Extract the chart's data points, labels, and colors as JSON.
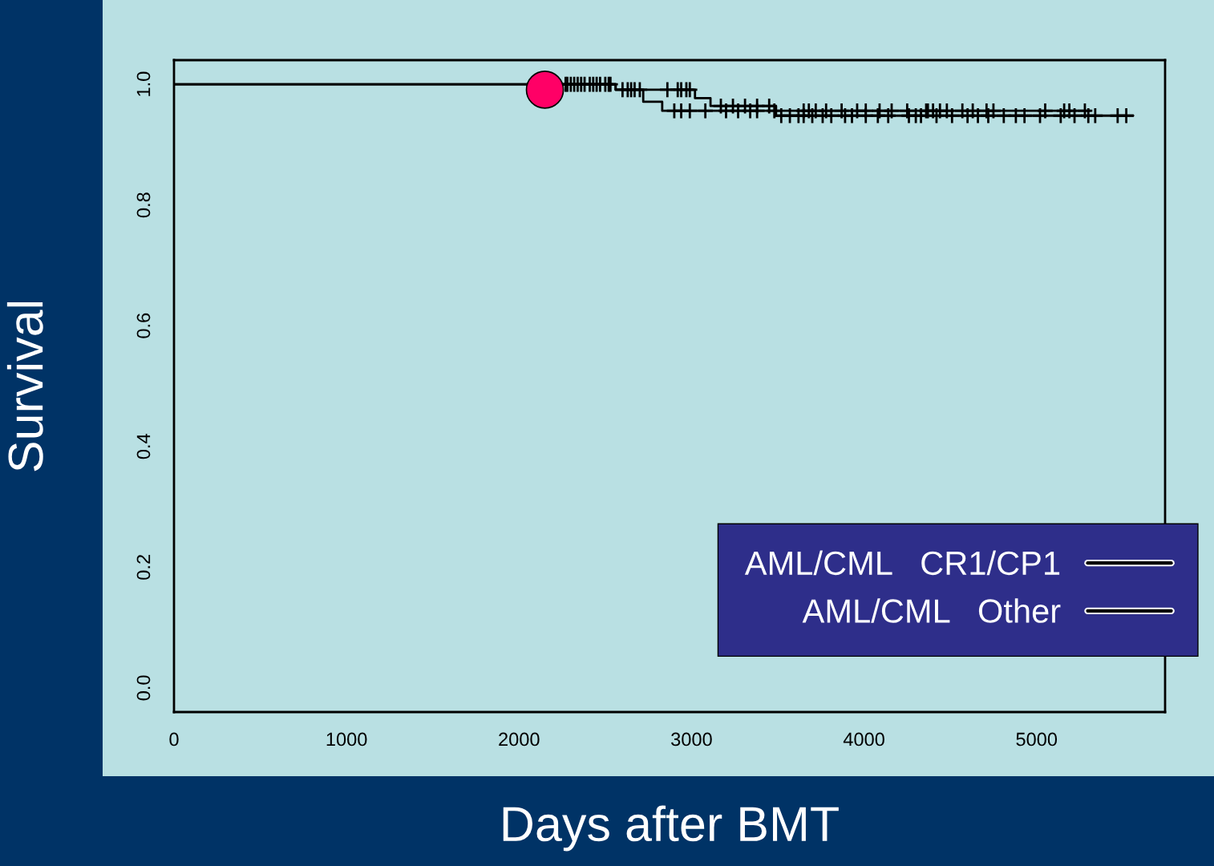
{
  "chart_data": {
    "type": "step",
    "xlabel": "Days after BMT",
    "ylabel": "Survival",
    "xlim": [
      0,
      5745
    ],
    "ylim": [
      -0.04,
      1.04
    ],
    "xticks": [
      0,
      1000,
      2000,
      3000,
      4000,
      5000
    ],
    "yticks": [
      {
        "value": 0,
        "label": "0.0"
      },
      {
        "value": 0.2,
        "label": "0.2"
      },
      {
        "value": 0.4,
        "label": "0.4"
      },
      {
        "value": 0.6,
        "label": "0.6"
      },
      {
        "value": 0.8,
        "label": "0.8"
      },
      {
        "value": 1,
        "label": "1.0"
      }
    ],
    "grid": false,
    "legend": "bottom right",
    "series": [
      {
        "name": "AML/CML   CR1/CP1",
        "color": "#000000",
        "x": [
          0,
          2560,
          2720,
          2830,
          5310
        ],
        "values": [
          1,
          0.991,
          0.971,
          0.956,
          0.956
        ]
      },
      {
        "name": "AML/CML   Other",
        "color": "#000000",
        "x": [
          0,
          2560,
          3020,
          3110,
          3490,
          5560
        ],
        "values": [
          1,
          0.991,
          0.977,
          0.964,
          0.948,
          0.948
        ]
      },
      {
        "type": "scatter",
        "marker": "cross",
        "color": "#000000",
        "x": [
          2270,
          2300,
          2340,
          2380,
          2430,
          2470,
          2500,
          2530,
          2600,
          2630,
          2650,
          2670,
          2700,
          2900,
          2940,
          2990,
          3080,
          3200,
          3270,
          3340,
          3380,
          3480,
          3650,
          3680,
          3720,
          3780,
          3870,
          3960,
          4010,
          4090,
          4160,
          4250,
          4360,
          4370,
          4400,
          4440,
          4480,
          4570,
          4630,
          4710,
          4750,
          5050,
          5160,
          5190,
          5280
        ],
        "values": [
          1,
          1,
          1,
          1,
          1,
          1,
          1,
          1,
          0.991,
          0.991,
          0.991,
          0.991,
          0.991,
          0.956,
          0.956,
          0.956,
          0.956,
          0.956,
          0.956,
          0.956,
          0.956,
          0.956,
          0.956,
          0.956,
          0.956,
          0.956,
          0.956,
          0.956,
          0.956,
          0.956,
          0.956,
          0.956,
          0.956,
          0.956,
          0.956,
          0.956,
          0.956,
          0.956,
          0.956,
          0.956,
          0.956,
          0.956,
          0.956,
          0.956,
          0.956
        ]
      },
      {
        "type": "scatter",
        "marker": "cross",
        "color": "#000000",
        "x": [
          2280,
          2320,
          2360,
          2410,
          2450,
          2520,
          2860,
          2920,
          2940,
          2970,
          2990,
          3170,
          3240,
          3310,
          3380,
          3450,
          3520,
          3570,
          3620,
          3650,
          3700,
          3760,
          3810,
          3890,
          3930,
          4010,
          4080,
          4140,
          4260,
          4300,
          4330,
          4420,
          4510,
          4600,
          4660,
          4720,
          4810,
          4880,
          4930,
          5020,
          5140,
          5220,
          5300,
          5340,
          5470,
          5520
        ],
        "values": [
          1,
          1,
          1,
          1,
          1,
          1,
          0.991,
          0.991,
          0.991,
          0.991,
          0.991,
          0.964,
          0.964,
          0.964,
          0.964,
          0.964,
          0.948,
          0.948,
          0.948,
          0.948,
          0.948,
          0.948,
          0.948,
          0.948,
          0.948,
          0.948,
          0.948,
          0.948,
          0.948,
          0.948,
          0.948,
          0.948,
          0.948,
          0.948,
          0.948,
          0.948,
          0.948,
          0.948,
          0.948,
          0.948,
          0.948,
          0.948,
          0.948,
          0.948,
          0.948,
          0.948
        ]
      },
      {
        "type": "scatter",
        "marker": "circle",
        "color": "#ff0066",
        "x": [
          2150
        ],
        "values": [
          0.991
        ]
      }
    ]
  }
}
